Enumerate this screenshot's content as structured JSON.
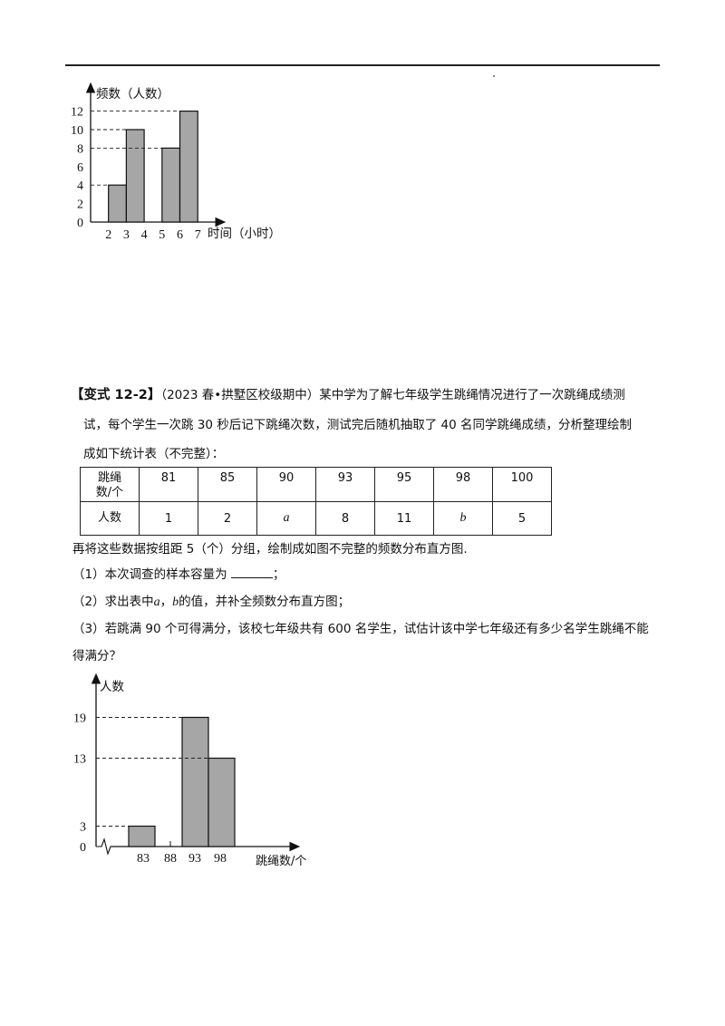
{
  "chart1": {
    "y_label": "频数（人数）",
    "x_label": "时间（小时）",
    "y_ticks": [
      "0",
      "2",
      "4",
      "6",
      "8",
      "10",
      "12"
    ],
    "x_ticks": [
      "2",
      "3",
      "4",
      "5",
      "6",
      "7"
    ]
  },
  "problem": {
    "tag": "【变式 12-2】",
    "source": "（2023 春•拱墅区校级期中）",
    "line1": "某中学为了解七年级学生跳绳情况进行了一次跳绳成绩测",
    "line2": "试，每个学生一次跳 30 秒后记下跳绳次数，测试完后随机抽取了 40 名同学跳绳成绩，分析整理绘制",
    "line3": "成如下统计表（不完整）：",
    "table": {
      "header_line1": "跳绳",
      "header_line2": "数/个",
      "counts_label": "人数",
      "values": [
        "81",
        "85",
        "90",
        "93",
        "95",
        "98",
        "100"
      ],
      "counts": [
        "1",
        "2",
        "a",
        "8",
        "11",
        "b",
        "5"
      ]
    },
    "after_table": "再将这些数据按组距 5（个）分组，绘制成如图不完整的频数分布直方图.",
    "q1": "（1）本次调查的样本容量为",
    "q1_end": "；",
    "q2_pre": "（2）求出表中",
    "q2_a": "a",
    "q2_comma": "，",
    "q2_b": "b",
    "q2_post": "的值，并补全频数分布直方图；",
    "q3_line1": "（3）若跳满 90 个可得满分，该校七年级共有 600 名学生，试估计该中学七年级还有多少名学生跳绳不能",
    "q3_line2": "得满分？"
  },
  "chart2": {
    "y_label": "人数",
    "x_label": "跳绳数/个",
    "y_ticks": [
      "0",
      "3",
      "13",
      "19"
    ],
    "x_ticks": [
      "83",
      "88",
      "93",
      "98"
    ]
  },
  "chart_data": [
    {
      "type": "bar",
      "categories": [
        "2-3",
        "3-4",
        "5-6",
        "6-7"
      ],
      "values": [
        4,
        10,
        8,
        12
      ],
      "xlabel": "时间（小时）",
      "ylabel": "频数（人数）",
      "ylim": [
        0,
        12
      ],
      "grid": false
    },
    {
      "type": "bar",
      "categories": [
        "80.5-85.5",
        "85.5-90.5",
        "90.5-95.5",
        "95.5-100.5"
      ],
      "values": [
        3,
        null,
        19,
        13
      ],
      "xlabel": "跳绳数/个",
      "ylabel": "人数",
      "grid": false
    }
  ]
}
